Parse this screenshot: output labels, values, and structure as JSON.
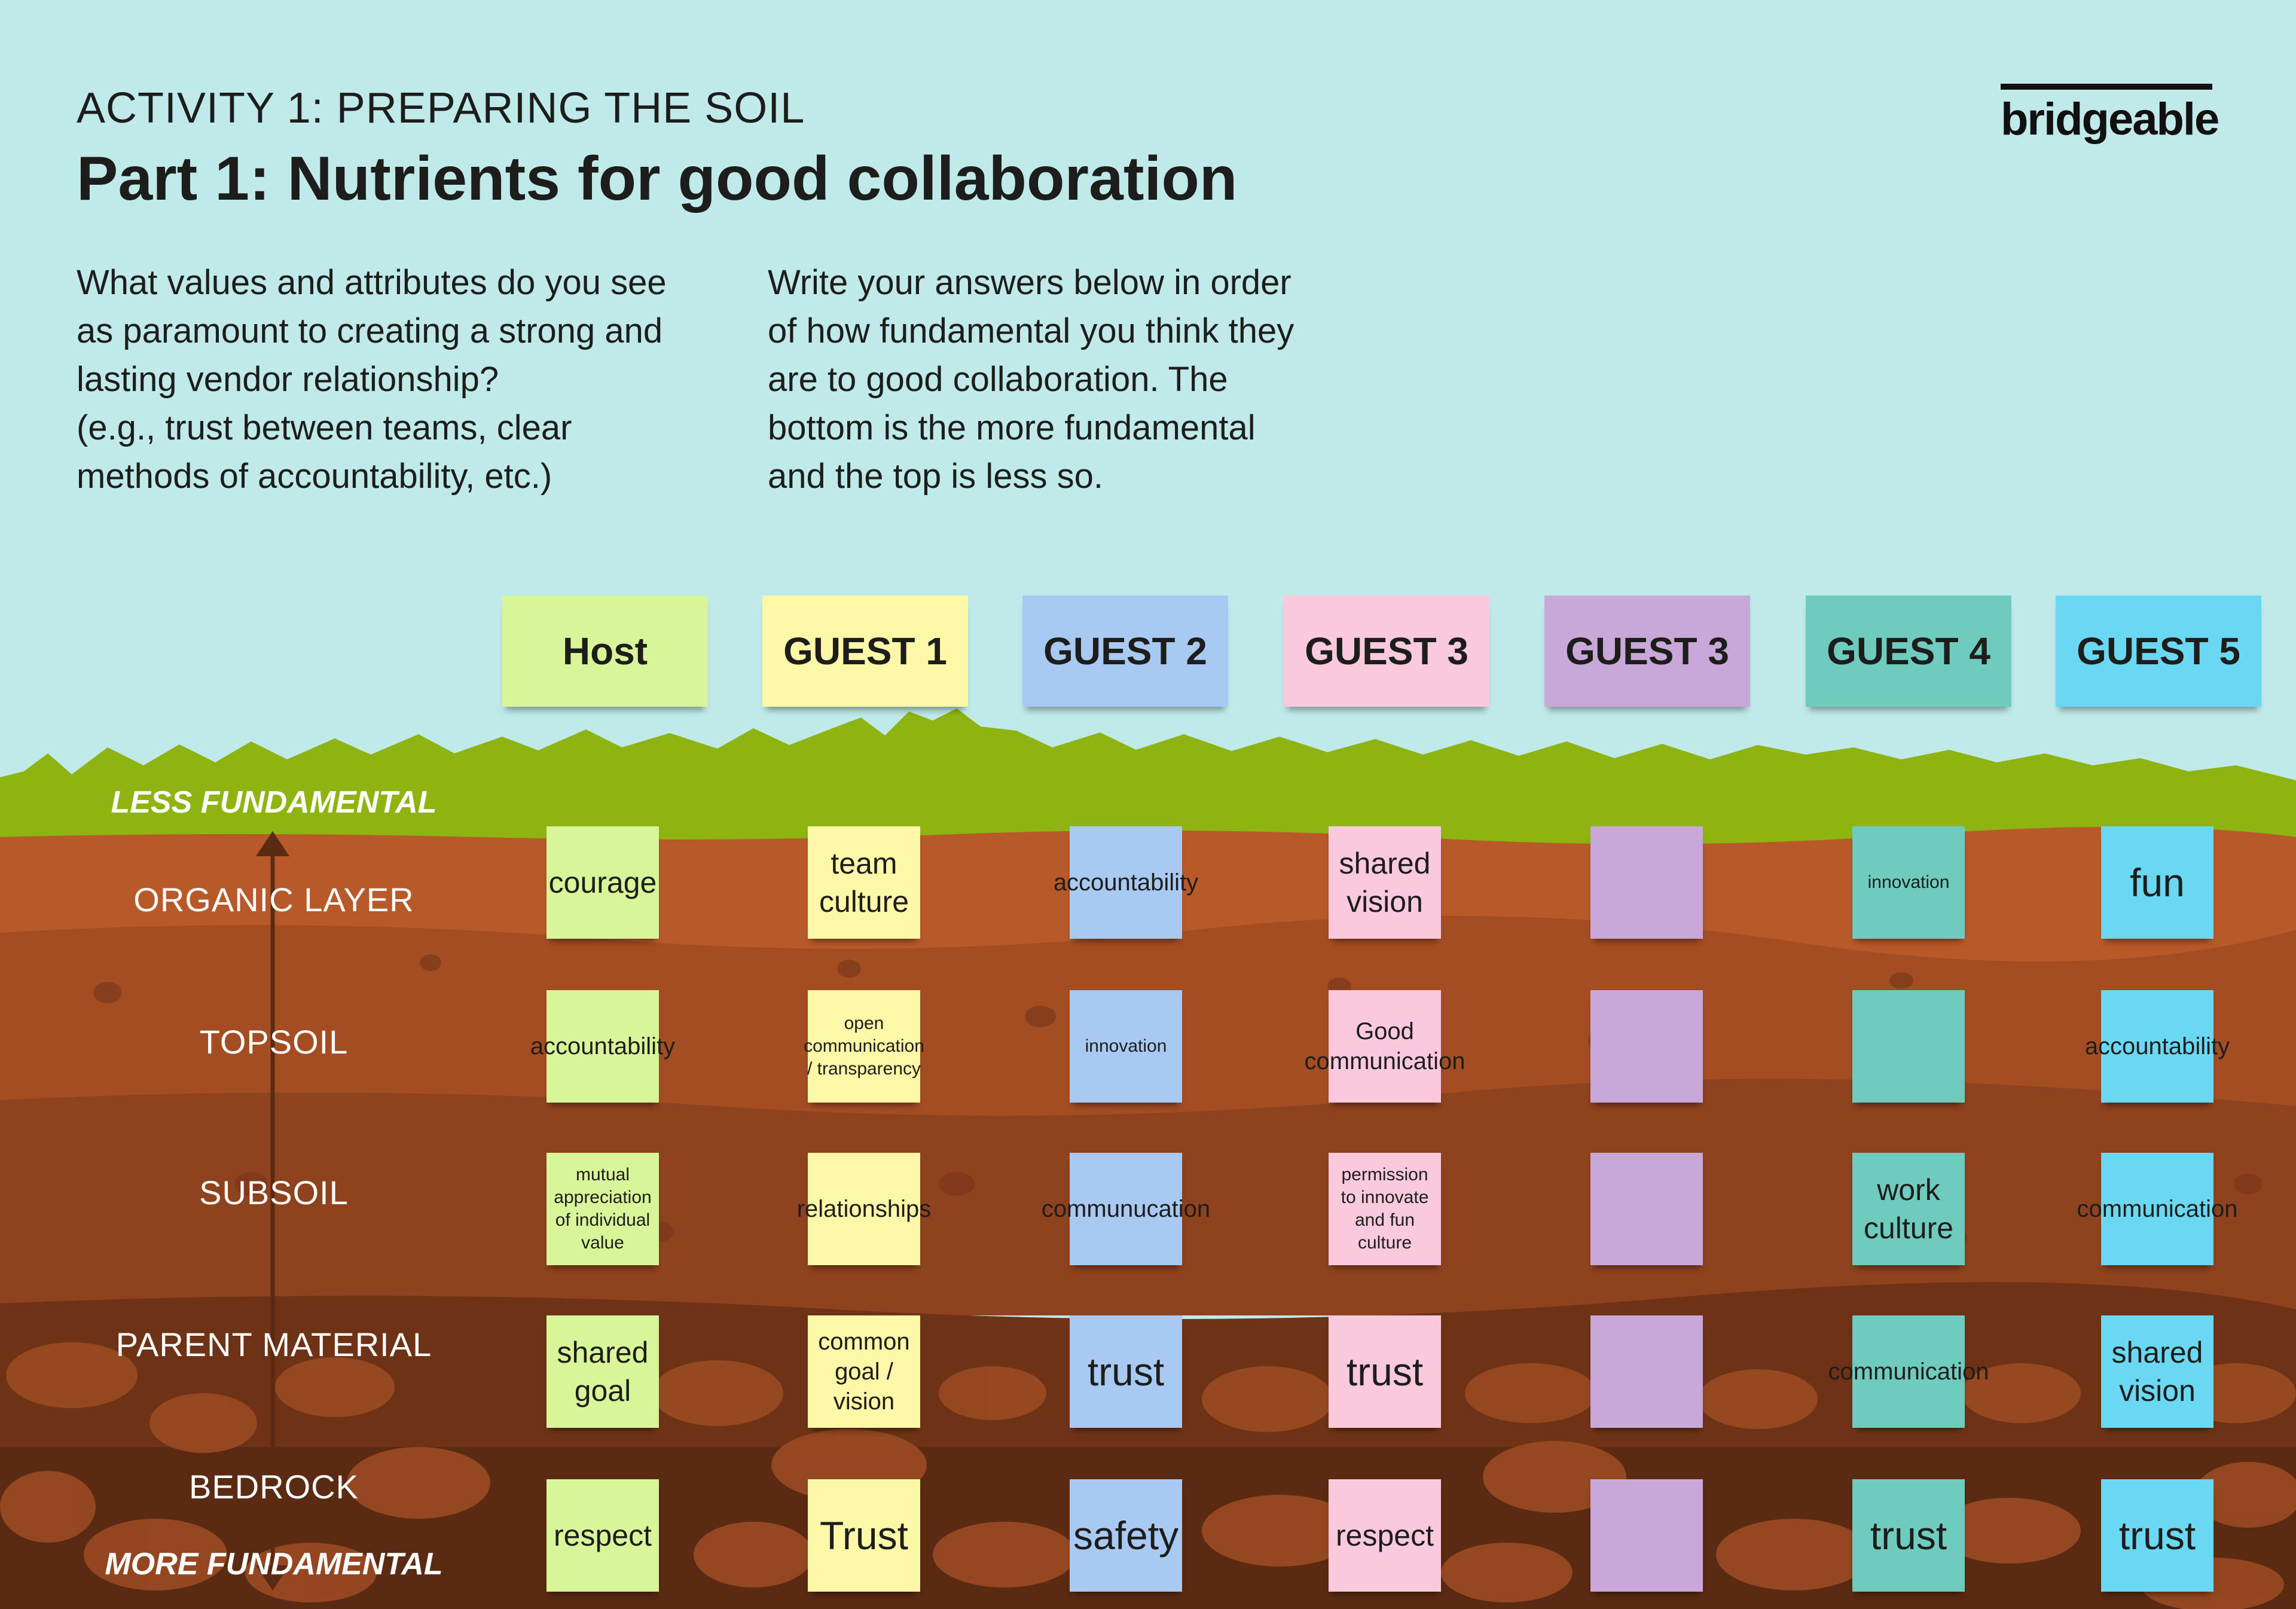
{
  "header": {
    "activity": "ACTIVITY 1: PREPARING THE SOIL",
    "title": "Part 1: Nutrients for good collaboration"
  },
  "intro": {
    "left": [
      "What values and attributes do you see",
      "as paramount to creating a strong and",
      "lasting vendor relationship?",
      "(e.g., trust between teams, clear",
      "methods of accountability, etc.)"
    ],
    "right": [
      "Write your answers below in order",
      "of how fundamental you think they",
      "are to good collaboration. The",
      "bottom is the more fundamental",
      "and the top is less so."
    ]
  },
  "logo": "bridgeable",
  "scale": {
    "top": "LESS FUNDAMENTAL",
    "bottom": "MORE FUNDAMENTAL"
  },
  "layers": [
    "ORGANIC LAYER",
    "TOPSOIL",
    "SUBSOIL",
    "PARENT MATERIAL",
    "BEDROCK"
  ],
  "colors": {
    "sky": "#c0e9e9",
    "grass": "#8db410",
    "host": "#d9f59a",
    "guest1": "#fdf7a8",
    "guest2": "#a8c9f2",
    "guest3_pink": "#fbc9de",
    "guest3_purple": "#c9a7d8",
    "guest4": "#6fcbbd",
    "guest5": "#6ad7f3"
  },
  "columns": [
    {
      "header": "Host",
      "color": "#d9f59a",
      "notes": [
        "courage",
        "accountability",
        "mutual appreciation of individual value",
        "shared goal",
        "respect"
      ]
    },
    {
      "header": "GUEST 1",
      "color": "#fdf7a8",
      "notes": [
        "team culture",
        "open communication / transparency",
        "relationships",
        "common goal / vision",
        "Trust"
      ]
    },
    {
      "header": "GUEST 2",
      "color": "#a8c9f2",
      "notes": [
        "accountability",
        "innovation",
        "communucation",
        "trust",
        "safety"
      ]
    },
    {
      "header": "GUEST 3",
      "color": "#fbc9de",
      "notes": [
        "shared vision",
        "Good communication",
        "permission to innovate and fun culture",
        "trust",
        "respect"
      ]
    },
    {
      "header": "GUEST 3",
      "color": "#c9a7d8",
      "notes": [
        "",
        "",
        "",
        "",
        ""
      ]
    },
    {
      "header": "GUEST 4",
      "color": "#6fcbbd",
      "notes": [
        "innovation",
        "",
        "work culture",
        "communication",
        "trust"
      ]
    },
    {
      "header": "GUEST 5",
      "color": "#6ad7f3",
      "notes": [
        "fun",
        "accountability",
        "communication",
        "shared vision",
        "trust"
      ]
    }
  ]
}
